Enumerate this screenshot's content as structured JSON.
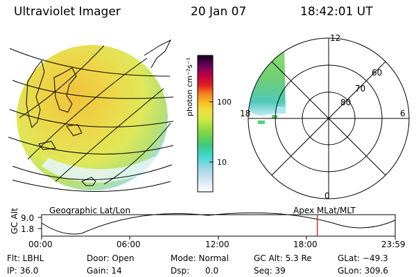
{
  "header": {
    "title": "Ultraviolet Imager",
    "date": "20 Jan 07",
    "time": "18:42:01 UT"
  },
  "colorbar": {
    "unit_label": "photon cm⁻²s⁻¹",
    "ticks": [
      "100",
      "10"
    ],
    "scale": "log"
  },
  "polar_plot": {
    "mlt_labels": [
      "12",
      "18",
      "6",
      "0"
    ],
    "mlat_labels": [
      "60",
      "70",
      "80"
    ]
  },
  "timeline": {
    "axis_label": "GC Alt",
    "y_ticks": [
      "9.0",
      "1.8"
    ],
    "left_title": "Geographic Lat/Lon",
    "right_title": "Apex  MLat/MLT",
    "x_ticks": [
      "00:00",
      "06:00",
      "12:00",
      "18:00",
      "23:59"
    ],
    "current_time_marker": "18:42",
    "marker_color": "#c83232"
  },
  "info": {
    "flt": "Flt: LBHL",
    "ip": "IP: 36.0",
    "door": "Door: Open",
    "gain": "Gain: 14",
    "mode": "Mode: Normal",
    "dsp": "Dsp:      0.0",
    "gc_alt": "GC Alt: 5.3 Re",
    "seq": "Seq: 39",
    "glat": "GLat: −49.3",
    "glon": "GLon: 309.6"
  }
}
